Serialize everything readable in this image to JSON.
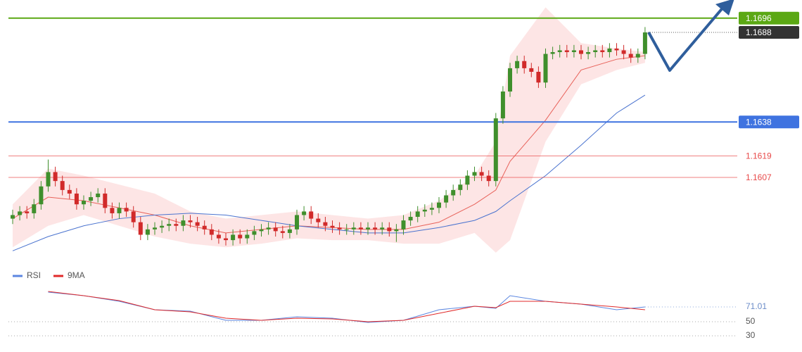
{
  "chart_data": {
    "type": "candlestick",
    "open": [
      1.1584,
      1.1586,
      1.1588,
      1.1587,
      1.1592,
      1.1602,
      1.161,
      1.1605,
      1.16,
      1.1598,
      1.1592,
      1.1594,
      1.1596,
      1.1598,
      1.159,
      1.1587,
      1.159,
      1.1588,
      1.1582,
      1.1575,
      1.1578,
      1.1579,
      1.158,
      1.1581,
      1.158,
      1.1583,
      1.1582,
      1.158,
      1.1578,
      1.1575,
      1.1573,
      1.1572,
      1.1575,
      1.1573,
      1.1575,
      1.1577,
      1.1578,
      1.1579,
      1.1577,
      1.1576,
      1.1578,
      1.1586,
      1.1588,
      1.1584,
      1.1582,
      1.158,
      1.1579,
      1.1578,
      1.1578,
      1.1579,
      1.1578,
      1.1579,
      1.1578,
      1.1579,
      1.1577,
      1.1578,
      1.1583,
      1.1585,
      1.1588,
      1.1589,
      1.159,
      1.1593,
      1.1597,
      1.16,
      1.1603,
      1.1608,
      1.161,
      1.1608,
      1.1605,
      1.164,
      1.1655,
      1.1668,
      1.1672,
      1.1668,
      1.1666,
      1.166,
      1.1676,
      1.1677,
      1.1678,
      1.1677,
      1.1678,
      1.1676,
      1.1677,
      1.1678,
      1.1677,
      1.1679,
      1.1678,
      1.1676,
      1.1674,
      1.1676
    ],
    "high": [
      1.1589,
      1.1591,
      1.1591,
      1.1595,
      1.1605,
      1.1617,
      1.1613,
      1.1608,
      1.1603,
      1.1601,
      1.1597,
      1.1599,
      1.1601,
      1.1601,
      1.1593,
      1.1593,
      1.1593,
      1.1591,
      1.1585,
      1.1581,
      1.1582,
      1.1583,
      1.1584,
      1.1584,
      1.1586,
      1.1586,
      1.1585,
      1.1583,
      1.1581,
      1.1578,
      1.1576,
      1.1578,
      1.1578,
      1.1578,
      1.158,
      1.1581,
      1.1582,
      1.1582,
      1.158,
      1.1581,
      1.1589,
      1.1591,
      1.1591,
      1.1587,
      1.1585,
      1.1583,
      1.1582,
      1.1581,
      1.1582,
      1.1582,
      1.1582,
      1.1582,
      1.1582,
      1.1582,
      1.1581,
      1.1586,
      1.1588,
      1.1591,
      1.1592,
      1.1593,
      1.1596,
      1.16,
      1.1603,
      1.1606,
      1.1611,
      1.1613,
      1.1613,
      1.1611,
      1.1643,
      1.1658,
      1.1671,
      1.1675,
      1.1675,
      1.1671,
      1.1669,
      1.1679,
      1.168,
      1.1681,
      1.1681,
      1.1681,
      1.1681,
      1.168,
      1.1681,
      1.1681,
      1.1682,
      1.1682,
      1.1681,
      1.1679,
      1.1679,
      1.1691
    ],
    "low": [
      1.1581,
      1.1583,
      1.1584,
      1.1584,
      1.1589,
      1.1599,
      1.1602,
      1.1597,
      1.1595,
      1.1589,
      1.1589,
      1.1591,
      1.1593,
      1.1587,
      1.1584,
      1.1584,
      1.1585,
      1.1579,
      1.1572,
      1.1572,
      1.1575,
      1.1576,
      1.1577,
      1.1577,
      1.1577,
      1.1579,
      1.1577,
      1.1575,
      1.1572,
      1.157,
      1.1569,
      1.1569,
      1.157,
      1.157,
      1.1572,
      1.1574,
      1.1575,
      1.1574,
      1.1573,
      1.1573,
      1.1575,
      1.1583,
      1.1581,
      1.1579,
      1.1577,
      1.1576,
      1.1575,
      1.1575,
      1.1575,
      1.1575,
      1.1575,
      1.1575,
      1.1575,
      1.1574,
      1.1571,
      1.1575,
      1.158,
      1.1582,
      1.1585,
      1.1586,
      1.1587,
      1.159,
      1.1594,
      1.1597,
      1.16,
      1.1605,
      1.1605,
      1.1602,
      1.1602,
      1.1637,
      1.1652,
      1.1665,
      1.1665,
      1.1663,
      1.1657,
      1.1657,
      1.1673,
      1.1674,
      1.1674,
      1.1674,
      1.1673,
      1.1673,
      1.1674,
      1.1674,
      1.1674,
      1.1675,
      1.1673,
      1.1671,
      1.1671,
      1.1673
    ],
    "close": [
      1.1586,
      1.1588,
      1.1587,
      1.1592,
      1.1602,
      1.161,
      1.1605,
      1.16,
      1.1598,
      1.1592,
      1.1594,
      1.1596,
      1.1598,
      1.159,
      1.1587,
      1.159,
      1.1588,
      1.1582,
      1.1575,
      1.1578,
      1.1579,
      1.158,
      1.1581,
      1.158,
      1.1583,
      1.1582,
      1.158,
      1.1578,
      1.1575,
      1.1573,
      1.1572,
      1.1575,
      1.1573,
      1.1575,
      1.1577,
      1.1578,
      1.1579,
      1.1577,
      1.1576,
      1.1578,
      1.1586,
      1.1588,
      1.1584,
      1.1582,
      1.158,
      1.1579,
      1.1578,
      1.1578,
      1.1579,
      1.1578,
      1.1579,
      1.1578,
      1.1579,
      1.1577,
      1.1578,
      1.1583,
      1.1585,
      1.1588,
      1.1589,
      1.159,
      1.1593,
      1.1597,
      1.16,
      1.1603,
      1.1608,
      1.161,
      1.1608,
      1.1605,
      1.164,
      1.1655,
      1.1668,
      1.1672,
      1.1668,
      1.1666,
      1.166,
      1.1676,
      1.1677,
      1.1678,
      1.1677,
      1.1678,
      1.1676,
      1.1677,
      1.1678,
      1.1677,
      1.1679,
      1.1678,
      1.1676,
      1.1674,
      1.1676,
      1.1688
    ],
    "up_color": "#3f8f2c",
    "down_color": "#d12a2a",
    "ylim": [
      1.15567,
      1.17061
    ],
    "bands": {
      "x": [
        0,
        5,
        10,
        15,
        20,
        25,
        30,
        35,
        40,
        45,
        50,
        55,
        60,
        65,
        68,
        70,
        75,
        80,
        85,
        89
      ],
      "upper": [
        1.1592,
        1.1612,
        1.1608,
        1.1603,
        1.1598,
        1.1588,
        1.1584,
        1.1586,
        1.1588,
        1.1586,
        1.1584,
        1.1586,
        1.1594,
        1.1608,
        1.1627,
        1.1675,
        1.1702,
        1.1682,
        1.1679,
        1.1677
      ],
      "lower": [
        1.1568,
        1.158,
        1.1586,
        1.158,
        1.1574,
        1.157,
        1.1568,
        1.157,
        1.1573,
        1.1572,
        1.1572,
        1.157,
        1.157,
        1.1576,
        1.1565,
        1.1572,
        1.1627,
        1.1659,
        1.1667,
        1.1671
      ],
      "middle": [
        1.1584,
        1.1596,
        1.1594,
        1.159,
        1.1586,
        1.158,
        1.1576,
        1.1578,
        1.158,
        1.1579,
        1.1578,
        1.1578,
        1.1582,
        1.1592,
        1.16,
        1.1616,
        1.1639,
        1.1667,
        1.1673,
        1.1675
      ],
      "fill": "#fcdcdc",
      "middle_color": "#e8625a"
    },
    "ma": {
      "x": [
        0,
        5,
        10,
        15,
        20,
        25,
        30,
        35,
        40,
        45,
        50,
        55,
        60,
        65,
        68,
        70,
        75,
        80,
        85,
        89
      ],
      "values": [
        1.1566,
        1.1574,
        1.158,
        1.1584,
        1.1586,
        1.1587,
        1.1586,
        1.1583,
        1.158,
        1.1578,
        1.1576,
        1.1576,
        1.1579,
        1.1583,
        1.1588,
        1.1594,
        1.1608,
        1.1625,
        1.1643,
        1.1653
      ],
      "color": "#4a73cf"
    },
    "levels": [
      {
        "value": 1.1696,
        "color": "#5ba814",
        "style": "box"
      },
      {
        "value": 1.1638,
        "color": "#3f73e0",
        "style": "box"
      },
      {
        "value": 1.1619,
        "color": "#e84a4a",
        "style": "text"
      },
      {
        "value": 1.1607,
        "color": "#e84a4a",
        "style": "text"
      }
    ],
    "last_price_color": "#333333",
    "rsi": {
      "ylim": [
        17,
        102
      ],
      "yticks": [
        30,
        50
      ],
      "series": [
        {
          "name": "RSI",
          "color": "#5b86e0",
          "x": [
            5,
            10,
            15,
            20,
            25,
            30,
            35,
            40,
            45,
            50,
            55,
            60,
            65,
            68,
            70,
            75,
            80,
            85,
            89
          ],
          "values": [
            92,
            87,
            79,
            67,
            65,
            52,
            52,
            57,
            55,
            49,
            52,
            67,
            72,
            69,
            87,
            79,
            75,
            67,
            71.01
          ]
        },
        {
          "name": "9MA",
          "color": "#e02a2a",
          "x": [
            5,
            10,
            15,
            20,
            25,
            30,
            35,
            40,
            45,
            50,
            55,
            60,
            65,
            68,
            70,
            75,
            80,
            85,
            89
          ],
          "values": [
            93,
            87,
            80,
            67,
            64,
            55,
            52,
            55,
            54,
            50,
            52,
            62,
            72,
            70,
            79,
            79,
            75,
            71,
            67
          ]
        }
      ]
    }
  }
}
